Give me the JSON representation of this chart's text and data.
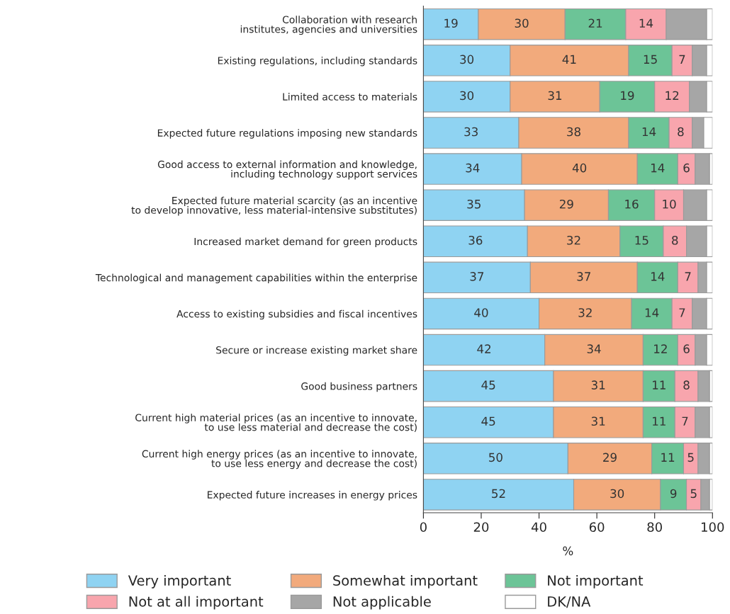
{
  "chart_data": {
    "type": "bar",
    "orientation": "horizontal",
    "stacked": true,
    "xlabel": "%",
    "categories": [
      "Collaboration with research\ninstitutes, agencies and universities",
      "Existing regulations, including standards",
      "Limited access to materials",
      "Expected future regulations imposing new standards",
      "Good access to external information and knowledge,\nincluding technology support services",
      "Expected future material scarcity (as an incentive\nto develop innovative, less material-intensive substitutes)",
      "Increased market demand for green products",
      "Technological and management capabilities within the enterprise",
      "Access to existing subsidies and fiscal incentives",
      "Secure or increase existing market share",
      "Good business partners",
      "Current high material prices (as an incentive to innovate,\nto use less material and decrease the cost)",
      "Current high energy prices (as an incentive to innovate,\nto use less energy and decrease the cost)",
      "Expected future increases in energy prices"
    ],
    "series": [
      {
        "name": "Very important",
        "color": "#8fd3f2",
        "values": [
          19,
          30,
          30,
          33,
          34,
          35,
          36,
          37,
          40,
          42,
          45,
          45,
          50,
          52
        ],
        "value_labels": [
          "19",
          "30",
          "30",
          "33",
          "34",
          "35",
          "36",
          "37",
          "40",
          "42",
          "45",
          "45",
          "50",
          "52"
        ]
      },
      {
        "name": "Somewhat important",
        "color": "#f2aa7c",
        "values": [
          30,
          41,
          31,
          38,
          40,
          29,
          32,
          37,
          32,
          34,
          31,
          31,
          29,
          30
        ],
        "value_labels": [
          "30",
          "41",
          "31",
          "38",
          "40",
          "29",
          "32",
          "37",
          "32",
          "34",
          "31",
          "31",
          "29",
          "30"
        ]
      },
      {
        "name": "Not important",
        "color": "#6cc497",
        "values": [
          21,
          15,
          19,
          14,
          14,
          16,
          15,
          14,
          14,
          12,
          11,
          11,
          11,
          9
        ],
        "value_labels": [
          "21",
          "15",
          "19",
          "14",
          "14",
          "16",
          "15",
          "14",
          "14",
          "12",
          "11",
          "11",
          "11",
          "9"
        ]
      },
      {
        "name": "Not at all important",
        "color": "#f8a5ad",
        "values": [
          14,
          7,
          12,
          8,
          6,
          10,
          8,
          7,
          7,
          6,
          8,
          7,
          5,
          5
        ],
        "value_labels": [
          "14",
          "7",
          "12",
          "8",
          "6",
          "10",
          "8",
          "7",
          "7",
          "6",
          "8",
          "7",
          "5",
          "5"
        ]
      },
      {
        "name": "Not applicable",
        "color": "#a6a6a6",
        "values": [
          14,
          5,
          6,
          4,
          5,
          8,
          7,
          3,
          5,
          4,
          4,
          5,
          4,
          3
        ]
      },
      {
        "name": "DK/NA",
        "color": "#ffffff",
        "values": [
          2,
          2,
          2,
          3,
          1,
          2,
          2,
          2,
          2,
          2,
          1,
          1,
          1,
          1
        ]
      }
    ],
    "xlim": [
      0,
      100
    ],
    "xticks": [
      0,
      20,
      40,
      60,
      80,
      100
    ],
    "grid": false,
    "legend": "bottom"
  }
}
